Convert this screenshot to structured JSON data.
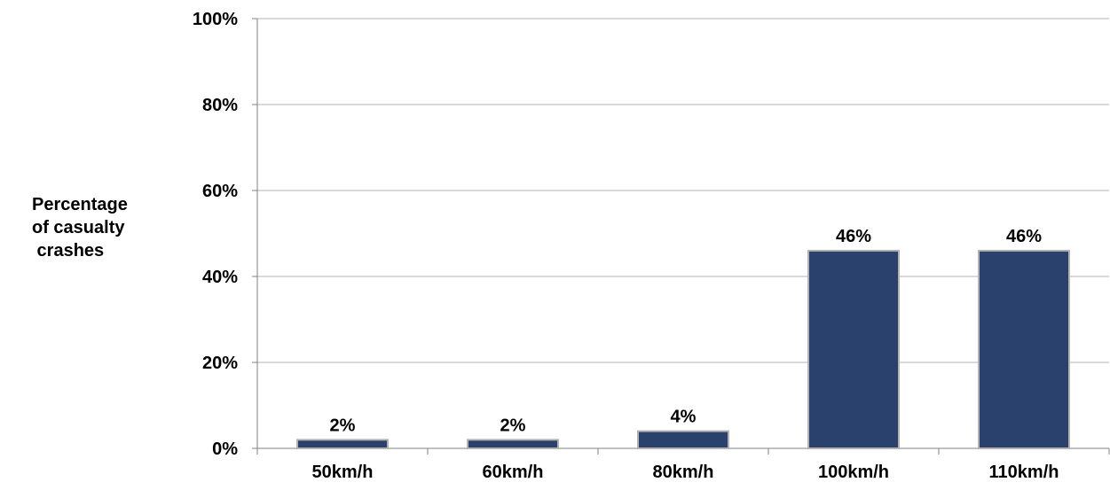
{
  "chart_data": {
    "type": "bar",
    "categories": [
      "50km/h",
      "60km/h",
      "80km/h",
      "100km/h",
      "110km/h"
    ],
    "values": [
      2,
      2,
      4,
      46,
      46
    ],
    "data_labels": [
      "2%",
      "2%",
      "4%",
      "46%",
      "46%"
    ],
    "title": "",
    "xlabel": "",
    "ylabel_lines": [
      "Percentage",
      "of casualty",
      " crashes"
    ],
    "ylim": [
      0,
      100
    ],
    "yticks": [
      0,
      20,
      40,
      60,
      80,
      100
    ],
    "ytick_labels": [
      "0%",
      "20%",
      "40%",
      "60%",
      "80%",
      "100%"
    ],
    "grid": true,
    "legend": "none",
    "colors": {
      "bar": "#2b416d",
      "bar_edge": "#b3b3b3",
      "grid": "#b3b3b3",
      "axis": "#808080",
      "text": "#000000"
    }
  }
}
